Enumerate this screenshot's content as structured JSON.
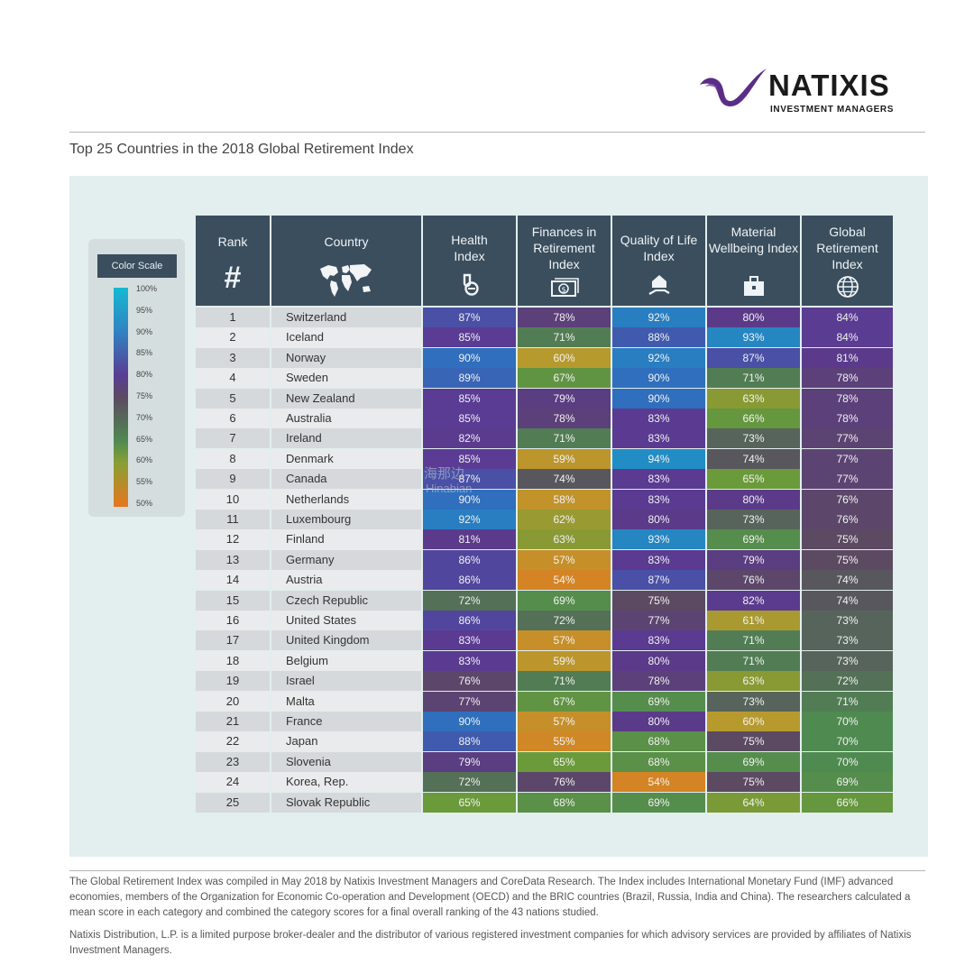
{
  "brand": {
    "name": "NATIXIS",
    "tagline": "INVESTMENT MANAGERS"
  },
  "title": "Top 25 Countries in the 2018 Global Retirement Index",
  "color_scale": {
    "title": "Color Scale",
    "labels": [
      "100%",
      "95%",
      "90%",
      "85%",
      "80%",
      "75%",
      "70%",
      "65%",
      "60%",
      "55%",
      "50%"
    ]
  },
  "table": {
    "headers": {
      "rank": {
        "label": "Rank",
        "icon": "hash-icon"
      },
      "country": {
        "label": "Country",
        "icon": "world-map-icon"
      },
      "health": {
        "label": "Health Index",
        "icon": "health-icon"
      },
      "finances": {
        "label": "Finances in Retirement Index",
        "icon": "money-icon"
      },
      "quality": {
        "label": "Quality of Life Index",
        "icon": "house-hand-icon"
      },
      "material": {
        "label": "Material Wellbeing Index",
        "icon": "briefcase-icon"
      },
      "global": {
        "label": "Global Retirement Index",
        "icon": "globe-icon"
      }
    },
    "rows": [
      {
        "rank": "1",
        "country": "Switzerland",
        "health": "87%",
        "finances": "78%",
        "quality": "92%",
        "material": "80%",
        "global": "84%"
      },
      {
        "rank": "2",
        "country": "Iceland",
        "health": "85%",
        "finances": "71%",
        "quality": "88%",
        "material": "93%",
        "global": "84%"
      },
      {
        "rank": "3",
        "country": "Norway",
        "health": "90%",
        "finances": "60%",
        "quality": "92%",
        "material": "87%",
        "global": "81%"
      },
      {
        "rank": "4",
        "country": "Sweden",
        "health": "89%",
        "finances": "67%",
        "quality": "90%",
        "material": "71%",
        "global": "78%"
      },
      {
        "rank": "5",
        "country": "New Zealand",
        "health": "85%",
        "finances": "79%",
        "quality": "90%",
        "material": "63%",
        "global": "78%"
      },
      {
        "rank": "6",
        "country": "Australia",
        "health": "85%",
        "finances": "78%",
        "quality": "83%",
        "material": "66%",
        "global": "78%"
      },
      {
        "rank": "7",
        "country": "Ireland",
        "health": "82%",
        "finances": "71%",
        "quality": "83%",
        "material": "73%",
        "global": "77%"
      },
      {
        "rank": "8",
        "country": "Denmark",
        "health": "85%",
        "finances": "59%",
        "quality": "94%",
        "material": "74%",
        "global": "77%"
      },
      {
        "rank": "9",
        "country": "Canada",
        "health": "87%",
        "finances": "74%",
        "quality": "83%",
        "material": "65%",
        "global": "77%"
      },
      {
        "rank": "10",
        "country": "Netherlands",
        "health": "90%",
        "finances": "58%",
        "quality": "83%",
        "material": "80%",
        "global": "76%"
      },
      {
        "rank": "11",
        "country": "Luxembourg",
        "health": "92%",
        "finances": "62%",
        "quality": "80%",
        "material": "73%",
        "global": "76%"
      },
      {
        "rank": "12",
        "country": "Finland",
        "health": "81%",
        "finances": "63%",
        "quality": "93%",
        "material": "69%",
        "global": "75%"
      },
      {
        "rank": "13",
        "country": "Germany",
        "health": "86%",
        "finances": "57%",
        "quality": "83%",
        "material": "79%",
        "global": "75%"
      },
      {
        "rank": "14",
        "country": "Austria",
        "health": "86%",
        "finances": "54%",
        "quality": "87%",
        "material": "76%",
        "global": "74%"
      },
      {
        "rank": "15",
        "country": "Czech Republic",
        "health": "72%",
        "finances": "69%",
        "quality": "75%",
        "material": "82%",
        "global": "74%"
      },
      {
        "rank": "16",
        "country": "United States",
        "health": "86%",
        "finances": "72%",
        "quality": "77%",
        "material": "61%",
        "global": "73%"
      },
      {
        "rank": "17",
        "country": "United Kingdom",
        "health": "83%",
        "finances": "57%",
        "quality": "83%",
        "material": "71%",
        "global": "73%"
      },
      {
        "rank": "18",
        "country": "Belgium",
        "health": "83%",
        "finances": "59%",
        "quality": "80%",
        "material": "71%",
        "global": "73%"
      },
      {
        "rank": "19",
        "country": "Israel",
        "health": "76%",
        "finances": "71%",
        "quality": "78%",
        "material": "63%",
        "global": "72%"
      },
      {
        "rank": "20",
        "country": "Malta",
        "health": "77%",
        "finances": "67%",
        "quality": "69%",
        "material": "73%",
        "global": "71%"
      },
      {
        "rank": "21",
        "country": "France",
        "health": "90%",
        "finances": "57%",
        "quality": "80%",
        "material": "60%",
        "global": "70%"
      },
      {
        "rank": "22",
        "country": "Japan",
        "health": "88%",
        "finances": "55%",
        "quality": "68%",
        "material": "75%",
        "global": "70%"
      },
      {
        "rank": "23",
        "country": "Slovenia",
        "health": "79%",
        "finances": "65%",
        "quality": "68%",
        "material": "69%",
        "global": "70%"
      },
      {
        "rank": "24",
        "country": "Korea, Rep.",
        "health": "72%",
        "finances": "76%",
        "quality": "54%",
        "material": "75%",
        "global": "69%"
      },
      {
        "rank": "25",
        "country": "Slovak Republic",
        "health": "65%",
        "finances": "68%",
        "quality": "69%",
        "material": "64%",
        "global": "66%"
      }
    ]
  },
  "footnotes": {
    "methodology": "The Global Retirement Index was compiled in May 2018 by Natixis Investment Managers and CoreData Research. The Index includes International Monetary Fund (IMF) advanced economies, members of the Organization for Economic Co-operation and Development (OECD) and the BRIC countries (Brazil, Russia, India and China). The researchers calculated a mean score in each category and combined the category scores for a final overall ranking of the 43 nations studied.",
    "disclaimer": "Natixis Distribution, L.P. is a limited purpose broker-dealer and the distributor of various registered investment companies for which advisory services are provided by affiliates of Natixis Investment Managers."
  },
  "watermark": {
    "line1": "海那边",
    "line2": "Hinabian"
  },
  "colors": {
    "header_bg": "#3b4e5d",
    "panel_bg": "#e3eeee",
    "row_light": "#e9ebec",
    "row_dark": "#d6d9db",
    "scale_stops": [
      "#e8761f",
      "#88a035",
      "#4f8a50",
      "#5c4a62",
      "#5a3c95",
      "#2f83c3",
      "#16b9d2"
    ]
  }
}
